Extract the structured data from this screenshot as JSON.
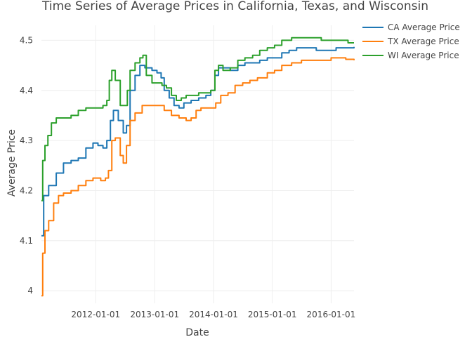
{
  "chart_data": {
    "type": "line",
    "title": "Time Series of Average Prices in California, Texas, and Wisconsin",
    "xlabel": "Date",
    "ylabel": "Average Price",
    "x_ticks": [
      "2012-01-01",
      "2013-01-01",
      "2014-01-01",
      "2015-01-01",
      "2016-01-01"
    ],
    "y_ticks": [
      4,
      4.1,
      4.2,
      4.3,
      4.4,
      4.5
    ],
    "xlim": [
      "2011-01-29",
      "2016-05-22"
    ],
    "ylim": [
      3.975,
      4.53
    ],
    "grid": true,
    "legend_position": "top-right",
    "series": [
      {
        "name": "CA Average Price",
        "color": "#1f77b4",
        "points": [
          [
            "2011-01-29",
            4.11
          ],
          [
            "2011-02-12",
            4.19
          ],
          [
            "2011-03-15",
            4.21
          ],
          [
            "2011-05-01",
            4.235
          ],
          [
            "2011-06-15",
            4.255
          ],
          [
            "2011-08-01",
            4.26
          ],
          [
            "2011-09-15",
            4.265
          ],
          [
            "2011-11-01",
            4.285
          ],
          [
            "2011-12-15",
            4.295
          ],
          [
            "2012-01-15",
            4.29
          ],
          [
            "2012-02-15",
            4.285
          ],
          [
            "2012-03-10",
            4.3
          ],
          [
            "2012-04-01",
            4.34
          ],
          [
            "2012-04-20",
            4.36
          ],
          [
            "2012-05-20",
            4.34
          ],
          [
            "2012-06-20",
            4.315
          ],
          [
            "2012-07-10",
            4.33
          ],
          [
            "2012-08-01",
            4.4
          ],
          [
            "2012-09-01",
            4.43
          ],
          [
            "2012-10-01",
            4.45
          ],
          [
            "2012-11-01",
            4.445
          ],
          [
            "2012-12-15",
            4.44
          ],
          [
            "2013-01-15",
            4.435
          ],
          [
            "2013-02-10",
            4.425
          ],
          [
            "2013-03-01",
            4.4
          ],
          [
            "2013-04-01",
            4.385
          ],
          [
            "2013-05-01",
            4.37
          ],
          [
            "2013-06-01",
            4.365
          ],
          [
            "2013-07-01",
            4.375
          ],
          [
            "2013-08-15",
            4.38
          ],
          [
            "2013-10-01",
            4.385
          ],
          [
            "2013-11-15",
            4.39
          ],
          [
            "2013-12-15",
            4.4
          ],
          [
            "2014-01-10",
            4.43
          ],
          [
            "2014-02-01",
            4.445
          ],
          [
            "2014-03-01",
            4.445
          ],
          [
            "2014-04-15",
            4.44
          ],
          [
            "2014-06-01",
            4.45
          ],
          [
            "2014-07-15",
            4.455
          ],
          [
            "2014-09-01",
            4.455
          ],
          [
            "2014-10-15",
            4.46
          ],
          [
            "2014-12-01",
            4.465
          ],
          [
            "2015-01-15",
            4.465
          ],
          [
            "2015-03-01",
            4.475
          ],
          [
            "2015-04-15",
            4.48
          ],
          [
            "2015-06-01",
            4.485
          ],
          [
            "2015-08-01",
            4.485
          ],
          [
            "2015-10-01",
            4.48
          ],
          [
            "2015-12-01",
            4.48
          ],
          [
            "2016-02-01",
            4.485
          ],
          [
            "2016-03-15",
            4.485
          ],
          [
            "2016-05-22",
            4.487
          ]
        ]
      },
      {
        "name": "TX Average Price",
        "color": "#ff7f0e",
        "points": [
          [
            "2011-01-29",
            3.99
          ],
          [
            "2011-02-06",
            4.075
          ],
          [
            "2011-02-20",
            4.12
          ],
          [
            "2011-03-15",
            4.14
          ],
          [
            "2011-04-15",
            4.175
          ],
          [
            "2011-05-15",
            4.19
          ],
          [
            "2011-06-15",
            4.195
          ],
          [
            "2011-08-01",
            4.2
          ],
          [
            "2011-09-15",
            4.21
          ],
          [
            "2011-11-01",
            4.22
          ],
          [
            "2011-12-15",
            4.225
          ],
          [
            "2012-02-01",
            4.22
          ],
          [
            "2012-03-01",
            4.225
          ],
          [
            "2012-03-20",
            4.24
          ],
          [
            "2012-04-10",
            4.3
          ],
          [
            "2012-05-01",
            4.305
          ],
          [
            "2012-06-01",
            4.27
          ],
          [
            "2012-06-20",
            4.255
          ],
          [
            "2012-07-10",
            4.29
          ],
          [
            "2012-08-01",
            4.34
          ],
          [
            "2012-09-01",
            4.355
          ],
          [
            "2012-10-15",
            4.37
          ],
          [
            "2012-12-01",
            4.37
          ],
          [
            "2013-01-15",
            4.37
          ],
          [
            "2013-03-01",
            4.36
          ],
          [
            "2013-04-15",
            4.35
          ],
          [
            "2013-06-01",
            4.345
          ],
          [
            "2013-07-15",
            4.34
          ],
          [
            "2013-08-15",
            4.345
          ],
          [
            "2013-09-15",
            4.36
          ],
          [
            "2013-10-15",
            4.365
          ],
          [
            "2013-12-01",
            4.365
          ],
          [
            "2014-01-15",
            4.375
          ],
          [
            "2014-02-15",
            4.39
          ],
          [
            "2014-04-01",
            4.395
          ],
          [
            "2014-05-15",
            4.41
          ],
          [
            "2014-07-01",
            4.415
          ],
          [
            "2014-08-15",
            4.42
          ],
          [
            "2014-10-01",
            4.425
          ],
          [
            "2014-12-01",
            4.435
          ],
          [
            "2015-01-15",
            4.44
          ],
          [
            "2015-03-01",
            4.45
          ],
          [
            "2015-05-01",
            4.455
          ],
          [
            "2015-07-01",
            4.46
          ],
          [
            "2015-09-01",
            4.46
          ],
          [
            "2015-11-01",
            4.46
          ],
          [
            "2016-01-01",
            4.465
          ],
          [
            "2016-02-15",
            4.465
          ],
          [
            "2016-04-01",
            4.462
          ],
          [
            "2016-05-22",
            4.46
          ]
        ]
      },
      {
        "name": "WI Average Price",
        "color": "#2ca02c",
        "points": [
          [
            "2011-01-29",
            4.18
          ],
          [
            "2011-02-06",
            4.26
          ],
          [
            "2011-02-20",
            4.29
          ],
          [
            "2011-03-10",
            4.31
          ],
          [
            "2011-04-01",
            4.335
          ],
          [
            "2011-05-01",
            4.345
          ],
          [
            "2011-06-15",
            4.345
          ],
          [
            "2011-08-01",
            4.35
          ],
          [
            "2011-09-15",
            4.36
          ],
          [
            "2011-11-01",
            4.365
          ],
          [
            "2011-12-15",
            4.365
          ],
          [
            "2012-01-15",
            4.365
          ],
          [
            "2012-02-15",
            4.37
          ],
          [
            "2012-03-10",
            4.38
          ],
          [
            "2012-03-25",
            4.42
          ],
          [
            "2012-04-10",
            4.44
          ],
          [
            "2012-05-01",
            4.42
          ],
          [
            "2012-06-01",
            4.37
          ],
          [
            "2012-06-25",
            4.37
          ],
          [
            "2012-07-15",
            4.4
          ],
          [
            "2012-08-01",
            4.44
          ],
          [
            "2012-09-01",
            4.455
          ],
          [
            "2012-10-01",
            4.465
          ],
          [
            "2012-10-20",
            4.47
          ],
          [
            "2012-11-10",
            4.43
          ],
          [
            "2012-12-15",
            4.415
          ],
          [
            "2013-01-15",
            4.415
          ],
          [
            "2013-02-15",
            4.41
          ],
          [
            "2013-03-15",
            4.405
          ],
          [
            "2013-04-15",
            4.39
          ],
          [
            "2013-05-15",
            4.38
          ],
          [
            "2013-06-15",
            4.385
          ],
          [
            "2013-07-15",
            4.39
          ],
          [
            "2013-08-15",
            4.39
          ],
          [
            "2013-10-01",
            4.395
          ],
          [
            "2013-11-15",
            4.395
          ],
          [
            "2013-12-15",
            4.4
          ],
          [
            "2014-01-10",
            4.44
          ],
          [
            "2014-02-01",
            4.45
          ],
          [
            "2014-03-01",
            4.44
          ],
          [
            "2014-04-15",
            4.445
          ],
          [
            "2014-06-01",
            4.46
          ],
          [
            "2014-07-15",
            4.465
          ],
          [
            "2014-09-01",
            4.47
          ],
          [
            "2014-10-15",
            4.48
          ],
          [
            "2014-12-01",
            4.485
          ],
          [
            "2015-01-15",
            4.49
          ],
          [
            "2015-03-01",
            4.5
          ],
          [
            "2015-05-01",
            4.505
          ],
          [
            "2015-07-01",
            4.505
          ],
          [
            "2015-09-01",
            4.505
          ],
          [
            "2015-11-01",
            4.5
          ],
          [
            "2016-01-01",
            4.5
          ],
          [
            "2016-03-01",
            4.5
          ],
          [
            "2016-04-15",
            4.495
          ],
          [
            "2016-05-22",
            4.495
          ]
        ]
      }
    ]
  }
}
